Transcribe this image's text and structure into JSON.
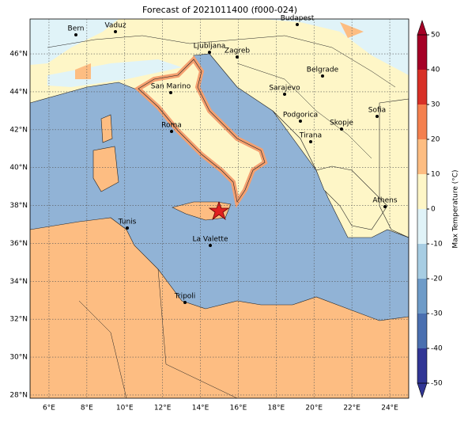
{
  "title": "Forecast of 2021011400 (f000-024)",
  "map": {
    "xlim": [
      5,
      25
    ],
    "ylim": [
      27.83,
      47.84
    ],
    "xticks": [
      {
        "value": 6,
        "label": "6°E"
      },
      {
        "value": 8,
        "label": "8°E"
      },
      {
        "value": 10,
        "label": "10°E"
      },
      {
        "value": 12,
        "label": "12°E"
      },
      {
        "value": 14,
        "label": "14°E"
      },
      {
        "value": 16,
        "label": "16°E"
      },
      {
        "value": 18,
        "label": "18°E"
      },
      {
        "value": 20,
        "label": "20°E"
      },
      {
        "value": 22,
        "label": "22°E"
      },
      {
        "value": 24,
        "label": "24°E"
      }
    ],
    "yticks": [
      {
        "value": 28,
        "label": "28°N"
      },
      {
        "value": 30,
        "label": "30°N"
      },
      {
        "value": 32,
        "label": "32°N"
      },
      {
        "value": 34,
        "label": "34°N"
      },
      {
        "value": 36,
        "label": "36°N"
      },
      {
        "value": 38,
        "label": "38°N"
      },
      {
        "value": 40,
        "label": "40°N"
      },
      {
        "value": 42,
        "label": "42°N"
      },
      {
        "value": 44,
        "label": "44°N"
      },
      {
        "value": 46,
        "label": "46°N"
      }
    ],
    "grid": true
  },
  "cities": [
    "Bern",
    "Vaduz",
    "Budapest",
    "Ljubljana",
    "Zagreb",
    "Belgrade",
    "San Marino",
    "Sarajevo",
    "Sofia",
    "Podgorica",
    "Skopje",
    "Roma",
    "Tirana",
    "Athens",
    "Tunis",
    "La Valette",
    "Tripoli"
  ],
  "colorbar": {
    "label": "Max Temperature (°C)",
    "lim": [
      -50,
      50
    ],
    "ticks": [
      -50,
      -40,
      -30,
      -20,
      -10,
      0,
      10,
      20,
      30,
      40,
      50
    ],
    "colors": [
      "#313695",
      "#4a6fb0",
      "#6e9bc8",
      "#a7cde3",
      "#e0f3f8",
      "#fef6c7",
      "#fdbd82",
      "#f4804f",
      "#d73027",
      "#a50026"
    ]
  }
}
